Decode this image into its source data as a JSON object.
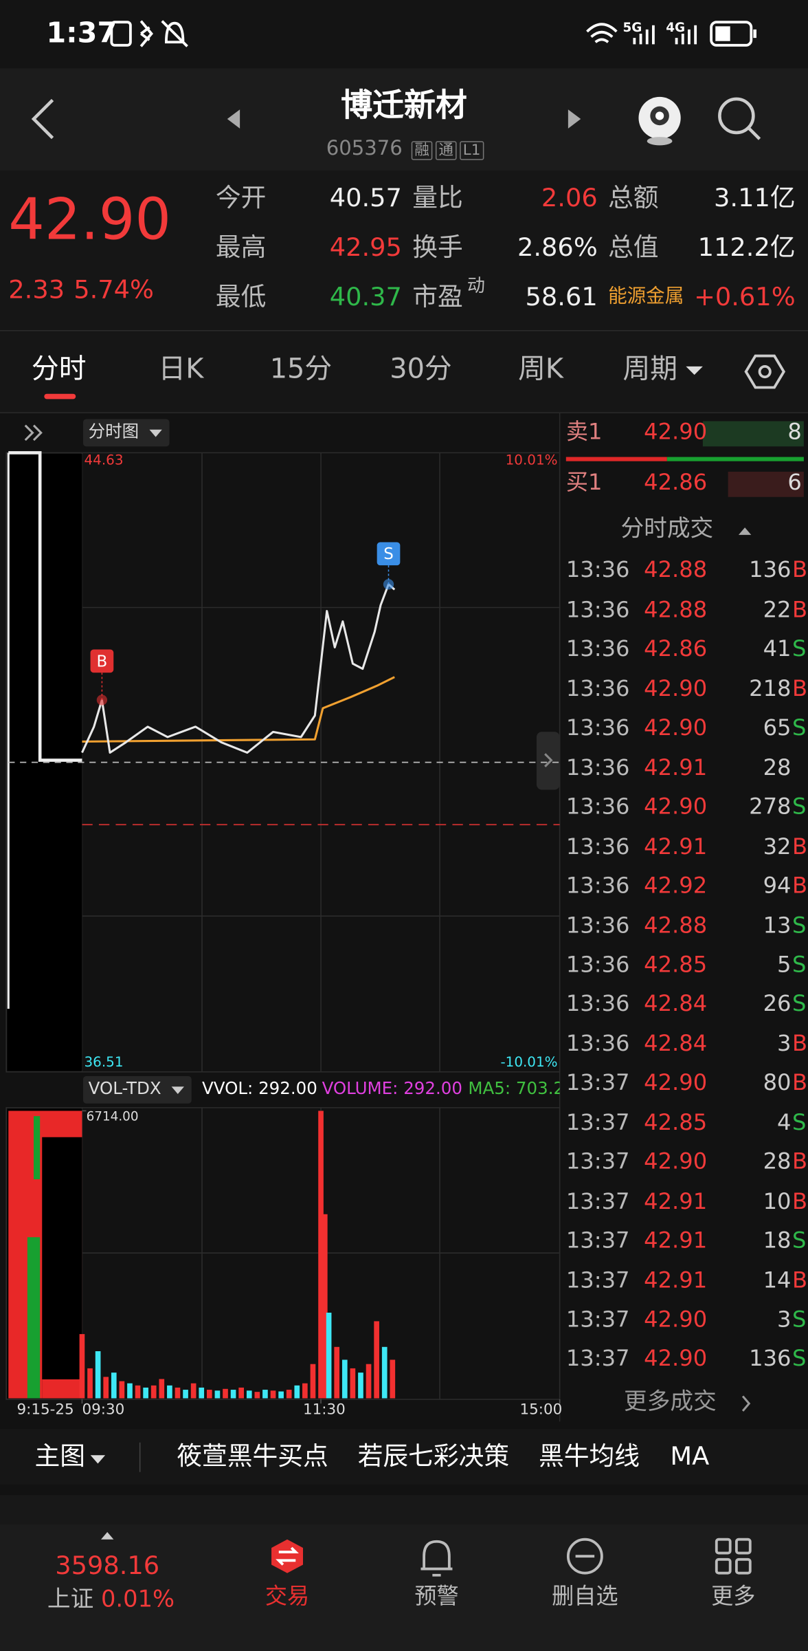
{
  "status": {
    "time": "1:37"
  },
  "header": {
    "title": "博迁新材",
    "code": "605376",
    "badges": [
      "融",
      "通",
      "L1"
    ]
  },
  "quote": {
    "price": "42.90",
    "change": "2.33",
    "change_pct": "5.74%",
    "stats": [
      {
        "label": "今开",
        "value": "40.57",
        "color": "#f0f0f0"
      },
      {
        "label": "量比",
        "value": "2.06",
        "color": "#f23a3a"
      },
      {
        "label": "总额",
        "value": "3.11亿",
        "color": "#f0f0f0"
      },
      {
        "label": "最高",
        "value": "42.95",
        "color": "#f23a3a"
      },
      {
        "label": "换手",
        "value": "2.86%",
        "color": "#f0f0f0"
      },
      {
        "label": "总值",
        "value": "112.2亿",
        "color": "#f0f0f0"
      },
      {
        "label": "最低",
        "value": "40.37",
        "color": "#2fb84a"
      },
      {
        "label": "市盈",
        "sup": "动",
        "value": "58.61",
        "color": "#f0f0f0"
      },
      {
        "label": "能源金属",
        "value": "+0.61%",
        "color": "#f23a3a"
      }
    ]
  },
  "tabs": {
    "items": [
      "分时",
      "日K",
      "15分",
      "30分",
      "周K",
      "周期"
    ],
    "active": 0
  },
  "chart": {
    "selector": "分时图",
    "ylim": [
      36.51,
      44.63
    ],
    "pct_top": "10.01%",
    "pct_bottom": "-10.01%",
    "premarket_label": "9:15-25",
    "xlim": [
      0,
      240
    ],
    "xticks": [
      {
        "value": 0,
        "label": "09:30"
      },
      {
        "value": 120,
        "label": "11:30"
      },
      {
        "value": 240,
        "label": "15:00"
      }
    ],
    "prev_close": 40.57,
    "red_line": 39.73,
    "price": {
      "color": "#e8e8e8",
      "minutes": [
        0,
        6,
        10,
        14,
        22,
        33,
        43,
        57,
        70,
        83,
        96,
        110,
        117,
        123,
        127,
        131,
        136,
        141,
        147,
        150,
        154,
        157
      ],
      "values": [
        40.7,
        41.05,
        41.41,
        40.7,
        40.84,
        41.05,
        40.91,
        41.05,
        40.84,
        40.7,
        40.98,
        40.91,
        41.2,
        42.61,
        42.12,
        42.47,
        41.9,
        41.83,
        42.33,
        42.69,
        42.97,
        42.9
      ]
    },
    "average": {
      "color": "#f0a030",
      "minutes": [
        0,
        117,
        121,
        135,
        148,
        157
      ],
      "values": [
        40.85,
        40.88,
        41.3,
        41.45,
        41.6,
        41.72
      ]
    },
    "markers": [
      {
        "label": "B",
        "minute": 10,
        "color": "#e03030"
      },
      {
        "label": "S",
        "minute": 154,
        "color": "#3a8ee6"
      }
    ],
    "volume": {
      "indicator": "VOL-TDX",
      "vvol": "VVOL: 292.00",
      "volume_text": "VOLUME: 292.00",
      "ma5": "MA5: 703.2",
      "max": {
        "value": 6714,
        "label": "6714.00"
      },
      "minutes": [
        0,
        4,
        8,
        12,
        16,
        20,
        24,
        28,
        32,
        36,
        40,
        44,
        48,
        52,
        56,
        60,
        64,
        68,
        72,
        76,
        80,
        84,
        88,
        92,
        96,
        100,
        104,
        108,
        112,
        116,
        120,
        122,
        124,
        128,
        132,
        136,
        140,
        144,
        148,
        152,
        156
      ],
      "values": [
        1500,
        700,
        1100,
        500,
        600,
        400,
        350,
        300,
        250,
        300,
        450,
        300,
        250,
        200,
        350,
        250,
        200,
        180,
        220,
        200,
        250,
        180,
        150,
        200,
        180,
        160,
        200,
        300,
        350,
        800,
        6714,
        4300,
        2000,
        1200,
        900,
        700,
        600,
        800,
        1800,
        1200,
        900
      ],
      "colors": [
        "#f23030",
        "#f23030",
        "#3ee8f5",
        "#f23030",
        "#3ee8f5",
        "#f23030",
        "#3ee8f5",
        "#f23030",
        "#3ee8f5",
        "#f23030",
        "#f23030",
        "#3ee8f5",
        "#f23030",
        "#3ee8f5",
        "#f23030",
        "#3ee8f5",
        "#f23030",
        "#3ee8f5",
        "#f23030",
        "#3ee8f5",
        "#f23030",
        "#3ee8f5",
        "#f23030",
        "#3ee8f5",
        "#f23030",
        "#3ee8f5",
        "#f23030",
        "#3ee8f5",
        "#f23030",
        "#f23030",
        "#f23030",
        "#f23030",
        "#3ee8f5",
        "#f23030",
        "#3ee8f5",
        "#f23030",
        "#3ee8f5",
        "#f23030",
        "#f23030",
        "#3ee8f5",
        "#f23030"
      ]
    }
  },
  "order_book": {
    "levels": [
      {
        "label": "卖1",
        "price": "42.90",
        "volume": "8"
      },
      {
        "label": "买1",
        "price": "42.86",
        "volume": "6"
      }
    ],
    "trades_title": "分时成交",
    "trades": [
      {
        "time": "13:36",
        "price": "42.88",
        "volume": "136",
        "side": "B"
      },
      {
        "time": "13:36",
        "price": "42.88",
        "volume": "22",
        "side": "B"
      },
      {
        "time": "13:36",
        "price": "42.86",
        "volume": "41",
        "side": "S"
      },
      {
        "time": "13:36",
        "price": "42.90",
        "volume": "218",
        "side": "B"
      },
      {
        "time": "13:36",
        "price": "42.90",
        "volume": "65",
        "side": "S"
      },
      {
        "time": "13:36",
        "price": "42.91",
        "volume": "28"
      },
      {
        "time": "13:36",
        "price": "42.90",
        "volume": "278",
        "side": "S"
      },
      {
        "time": "13:36",
        "price": "42.91",
        "volume": "32",
        "side": "B"
      },
      {
        "time": "13:36",
        "price": "42.92",
        "volume": "94",
        "side": "B"
      },
      {
        "time": "13:36",
        "price": "42.88",
        "volume": "13",
        "side": "S"
      },
      {
        "time": "13:36",
        "price": "42.85",
        "volume": "5",
        "side": "S"
      },
      {
        "time": "13:36",
        "price": "42.84",
        "volume": "26",
        "side": "S"
      },
      {
        "time": "13:36",
        "price": "42.84",
        "volume": "3",
        "side": "B"
      },
      {
        "time": "13:37",
        "price": "42.90",
        "volume": "80",
        "side": "B"
      },
      {
        "time": "13:37",
        "price": "42.85",
        "volume": "4",
        "side": "S"
      },
      {
        "time": "13:37",
        "price": "42.90",
        "volume": "28",
        "side": "B"
      },
      {
        "time": "13:37",
        "price": "42.91",
        "volume": "10",
        "side": "B"
      },
      {
        "time": "13:37",
        "price": "42.91",
        "volume": "18",
        "side": "S"
      },
      {
        "time": "13:37",
        "price": "42.91",
        "volume": "14",
        "side": "B"
      },
      {
        "time": "13:37",
        "price": "42.90",
        "volume": "3",
        "side": "S"
      },
      {
        "time": "13:37",
        "price": "42.90",
        "volume": "136",
        "side": "S"
      }
    ],
    "more": "更多成交"
  },
  "toolbar": {
    "main": "主图",
    "items": [
      "筱萱黑牛买点",
      "若辰七彩决策",
      "黑牛均线",
      "MA"
    ]
  },
  "bottom_nav": {
    "index_value": "3598.16",
    "index_name": "上证",
    "index_change": "0.01%",
    "items": [
      "交易",
      "预警",
      "删自选",
      "更多"
    ],
    "active": 0
  }
}
